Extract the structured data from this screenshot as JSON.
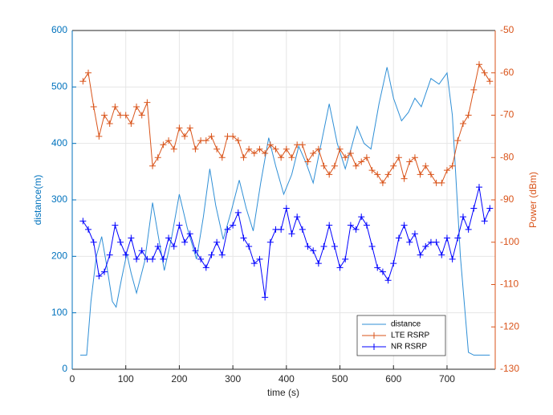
{
  "chart_data": {
    "type": "line",
    "xlabel": "time (s)",
    "ylabel": "distance(m)",
    "y2label": "Power (dBm)",
    "xlim": [
      0,
      790
    ],
    "xticks": [
      0,
      100,
      200,
      300,
      400,
      500,
      600,
      700
    ],
    "ylim": [
      0,
      600
    ],
    "yticks": [
      0,
      100,
      200,
      300,
      400,
      500,
      600
    ],
    "y2lim": [
      -130,
      -50
    ],
    "y2ticks": [
      -130,
      -120,
      -110,
      -100,
      -90,
      -80,
      -70,
      -60,
      -50
    ],
    "grid": true,
    "legend": "lower right",
    "ycolor": "#0072bd",
    "y2color": "#d95319",
    "series": [
      {
        "name": "distance",
        "color": "#2f8fd6",
        "marker": "none",
        "x": [
          15,
          27,
          35,
          45,
          55,
          65,
          75,
          82,
          92,
          102,
          110,
          120,
          135,
          150,
          160,
          172,
          185,
          200,
          215,
          232,
          245,
          257,
          268,
          282,
          297,
          312,
          325,
          338,
          352,
          367,
          380,
          395,
          410,
          423,
          437,
          450,
          465,
          480,
          495,
          510,
          522,
          532,
          545,
          558,
          573,
          588,
          600,
          615,
          628,
          640,
          652,
          670,
          685,
          700,
          710,
          725,
          740,
          750,
          780
        ],
        "values": [
          25,
          25,
          120,
          200,
          235,
          180,
          120,
          110,
          160,
          205,
          170,
          135,
          190,
          295,
          240,
          175,
          230,
          310,
          250,
          195,
          270,
          355,
          290,
          230,
          280,
          335,
          285,
          245,
          330,
          410,
          360,
          310,
          345,
          395,
          365,
          330,
          400,
          470,
          400,
          355,
          395,
          430,
          400,
          390,
          470,
          535,
          480,
          440,
          455,
          480,
          465,
          515,
          505,
          525,
          450,
          200,
          30,
          25,
          25
        ]
      },
      {
        "name": "LTE RSRP",
        "color": "#d95319",
        "marker": "+",
        "axis": "y2",
        "x": [
          20,
          30,
          40,
          50,
          60,
          70,
          80,
          90,
          100,
          110,
          120,
          130,
          140,
          150,
          160,
          170,
          180,
          190,
          200,
          210,
          220,
          230,
          240,
          250,
          260,
          270,
          280,
          290,
          300,
          310,
          320,
          330,
          340,
          350,
          360,
          370,
          380,
          390,
          400,
          410,
          420,
          430,
          440,
          450,
          460,
          470,
          480,
          490,
          500,
          510,
          520,
          530,
          540,
          550,
          560,
          570,
          580,
          590,
          600,
          610,
          620,
          630,
          640,
          650,
          660,
          670,
          680,
          690,
          700,
          710,
          720,
          730,
          740,
          750,
          760,
          770,
          780
        ],
        "values": [
          -62,
          -60,
          -68,
          -75,
          -70,
          -72,
          -68,
          -70,
          -70,
          -72,
          -68,
          -70,
          -67,
          -82,
          -80,
          -77,
          -76,
          -78,
          -73,
          -75,
          -73,
          -78,
          -76,
          -76,
          -75,
          -78,
          -80,
          -75,
          -75,
          -76,
          -80,
          -78,
          -79,
          -78,
          -79,
          -77,
          -78,
          -80,
          -78,
          -80,
          -77,
          -77,
          -81,
          -79,
          -78,
          -82,
          -84,
          -82,
          -78,
          -80,
          -79,
          -82,
          -81,
          -80,
          -83,
          -84,
          -86,
          -84,
          -82,
          -80,
          -85,
          -81,
          -80,
          -84,
          -82,
          -84,
          -86,
          -86,
          -83,
          -82,
          -76,
          -72,
          -70,
          -64,
          -58,
          -60,
          -62
        ]
      },
      {
        "name": "NR RSRP",
        "color": "#0000ff",
        "marker": "+",
        "axis": "y2",
        "x": [
          20,
          30,
          40,
          50,
          60,
          70,
          80,
          90,
          100,
          110,
          120,
          130,
          140,
          150,
          160,
          170,
          180,
          190,
          200,
          210,
          220,
          230,
          240,
          250,
          260,
          270,
          280,
          290,
          300,
          310,
          320,
          330,
          340,
          350,
          360,
          370,
          380,
          390,
          400,
          410,
          420,
          430,
          440,
          450,
          460,
          470,
          480,
          490,
          500,
          510,
          520,
          530,
          540,
          550,
          560,
          570,
          580,
          590,
          600,
          610,
          620,
          630,
          640,
          650,
          660,
          670,
          680,
          690,
          700,
          710,
          720,
          730,
          740,
          750,
          760,
          770,
          780
        ],
        "values": [
          -95,
          -97,
          -100,
          -108,
          -107,
          -103,
          -96,
          -100,
          -103,
          -99,
          -104,
          -102,
          -104,
          -104,
          -101,
          -104,
          -99,
          -101,
          -96,
          -100,
          -98,
          -102,
          -104,
          -106,
          -103,
          -100,
          -103,
          -97,
          -96,
          -93,
          -99,
          -101,
          -105,
          -104,
          -113,
          -100,
          -97,
          -97,
          -92,
          -98,
          -94,
          -97,
          -101,
          -102,
          -105,
          -101,
          -96,
          -101,
          -106,
          -104,
          -96,
          -97,
          -94,
          -96,
          -101,
          -106,
          -107,
          -109,
          -105,
          -99,
          -96,
          -100,
          -98,
          -103,
          -101,
          -100,
          -100,
          -103,
          -99,
          -104,
          -99,
          -94,
          -97,
          -92,
          -87,
          -95,
          -92
        ]
      }
    ]
  }
}
